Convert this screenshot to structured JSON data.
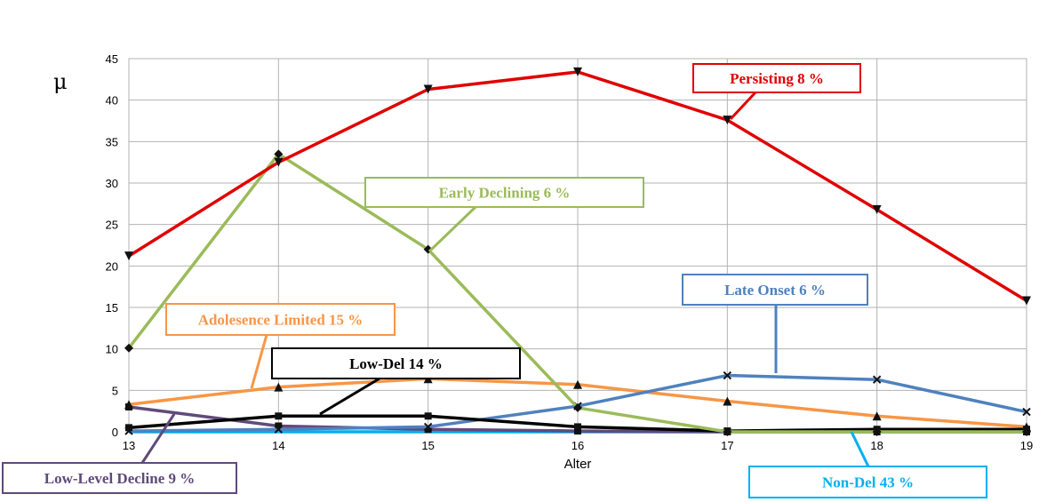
{
  "chart_data": {
    "type": "line",
    "xlabel": "Alter",
    "ylabel": "μ",
    "x": [
      13,
      14,
      15,
      16,
      17,
      18,
      19
    ],
    "xlim": [
      13,
      19
    ],
    "ylim": [
      0,
      45
    ],
    "yticks": [
      0,
      5,
      10,
      15,
      20,
      25,
      30,
      35,
      40,
      45
    ],
    "grid": true,
    "series": [
      {
        "name": "Persisting 8 %",
        "color": "#e00000",
        "marker": "triangle-down",
        "values": [
          21.2,
          32.5,
          41.3,
          43.4,
          37.6,
          26.8,
          15.8
        ]
      },
      {
        "name": "Early Declining 6 %",
        "color": "#9bbb59",
        "marker": "diamond",
        "values": [
          10.1,
          33.5,
          22.0,
          2.9,
          0.0,
          0.0,
          0.0
        ]
      },
      {
        "name": "Late Onset 6 %",
        "color": "#4f81bd",
        "marker": "x",
        "values": [
          0.1,
          0.3,
          0.6,
          3.1,
          6.8,
          6.3,
          2.4
        ]
      },
      {
        "name": "Adolesence Limited 15 %",
        "color": "#f79646",
        "marker": "triangle",
        "values": [
          3.3,
          5.4,
          6.4,
          5.7,
          3.7,
          1.9,
          0.6
        ]
      },
      {
        "name": "Low-Del 14 %",
        "color": "#000000",
        "marker": "square",
        "values": [
          0.5,
          1.9,
          1.9,
          0.6,
          0.1,
          0.3,
          0.3
        ]
      },
      {
        "name": "Low-Level Decline 9 %",
        "color": "#604a7b",
        "marker": "square",
        "values": [
          3.0,
          0.7,
          0.3,
          0.1,
          0.0,
          0.0,
          0.0
        ]
      },
      {
        "name": "Non-Del 43 %",
        "color": "#00b0f0",
        "marker": "none",
        "values": [
          0.0,
          0.0,
          0.0,
          0.0,
          0.0,
          0.0,
          0.0
        ]
      }
    ]
  }
}
